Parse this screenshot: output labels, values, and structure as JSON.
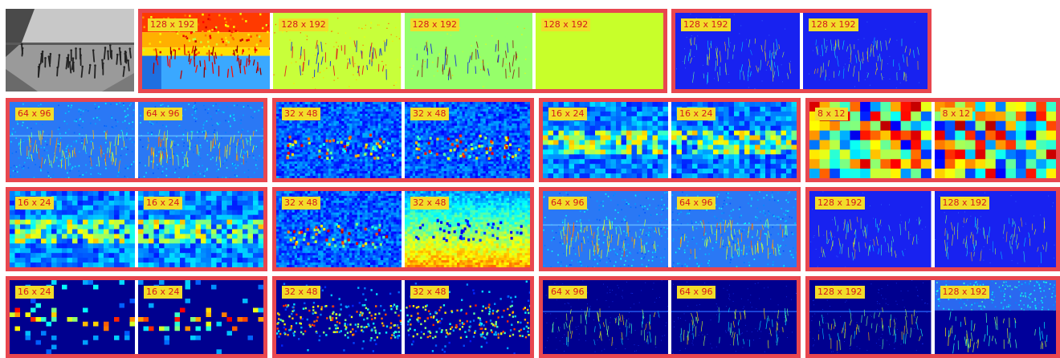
{
  "input_frame": {
    "icon": "crowd-photo-icon"
  },
  "colors": {
    "frame_border": "#e8474f",
    "tag_bg": "#f2dd2a",
    "tag_text": "#d4181c"
  },
  "rows": [
    {
      "groups": [
        {
          "tiles": [
            {
              "label": "128 x 192",
              "style": "heat"
            },
            {
              "label": "128 x 192",
              "style": "yellowgreen"
            },
            {
              "label": "128 x 192",
              "style": "green"
            },
            {
              "label": "128 x 192",
              "style": "flatyellow"
            }
          ]
        },
        {
          "tiles": [
            {
              "label": "128 x 192",
              "style": "blueedge"
            },
            {
              "label": "128 x 192",
              "style": "blueedge"
            }
          ]
        }
      ]
    },
    {
      "groups": [
        {
          "tiles": [
            {
              "label": "64 x 96",
              "style": "bluefine"
            },
            {
              "label": "64 x 96",
              "style": "bluefine"
            }
          ]
        },
        {
          "tiles": [
            {
              "label": "32 x 48",
              "style": "bluemid"
            },
            {
              "label": "32 x 48",
              "style": "bluemid"
            }
          ]
        },
        {
          "tiles": [
            {
              "label": "16 x 24",
              "style": "bluecoarse"
            },
            {
              "label": "16 x 24",
              "style": "bluecoarse"
            }
          ]
        },
        {
          "tiles": [
            {
              "label": "8 x 12",
              "style": "blocky"
            },
            {
              "label": "8 x 12",
              "style": "blocky"
            }
          ]
        }
      ]
    },
    {
      "groups": [
        {
          "tiles": [
            {
              "label": "16 x 24",
              "style": "bluecoarse"
            },
            {
              "label": "16 x 24",
              "style": "bluecoarse"
            }
          ]
        },
        {
          "tiles": [
            {
              "label": "32 x 48",
              "style": "bluemid"
            },
            {
              "label": "32 x 48",
              "style": "cyanyellow"
            }
          ]
        },
        {
          "tiles": [
            {
              "label": "64 x 96",
              "style": "bluefine"
            },
            {
              "label": "64 x 96",
              "style": "bluefine"
            }
          ]
        },
        {
          "tiles": [
            {
              "label": "128 x 192",
              "style": "blueedge"
            },
            {
              "label": "128 x 192",
              "style": "blueedge"
            }
          ]
        }
      ]
    },
    {
      "groups": [
        {
          "tiles": [
            {
              "label": "16 x 24",
              "style": "navysparse"
            },
            {
              "label": "16 x 24",
              "style": "navysparse"
            }
          ]
        },
        {
          "tiles": [
            {
              "label": "32 x 48",
              "style": "navymid"
            },
            {
              "label": "32 x 48",
              "style": "navymid"
            }
          ]
        },
        {
          "tiles": [
            {
              "label": "64 x 96",
              "style": "navyfine"
            },
            {
              "label": "64 x 96",
              "style": "navyfine"
            }
          ]
        },
        {
          "tiles": [
            {
              "label": "128 x 192",
              "style": "navyfine"
            },
            {
              "label": "128 x 192",
              "style": "navylight"
            }
          ]
        }
      ]
    }
  ]
}
